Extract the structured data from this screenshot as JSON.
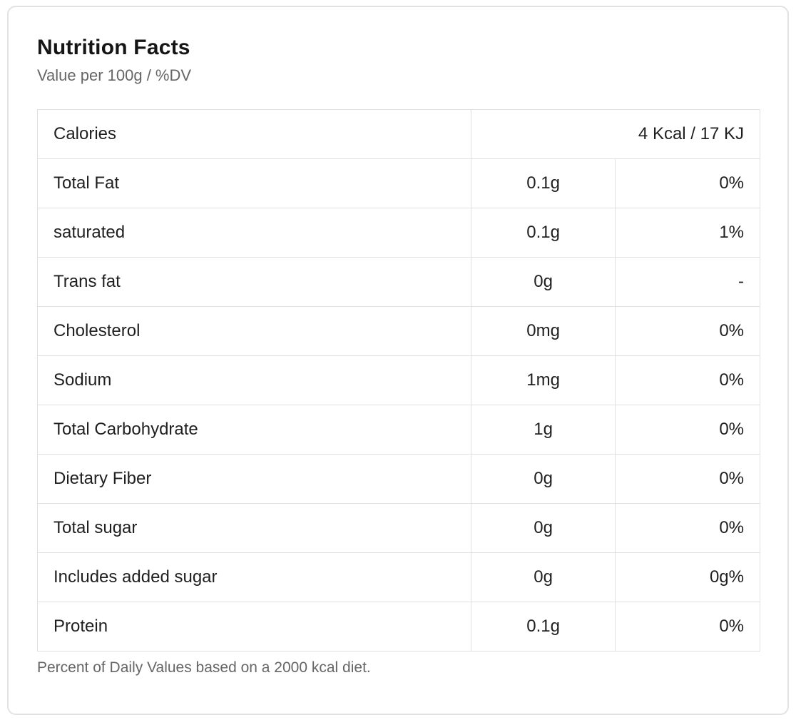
{
  "header": {
    "title": "Nutrition Facts",
    "subtitle": "Value per 100g / %DV"
  },
  "table": {
    "calories": {
      "label": "Calories",
      "value": "4 Kcal / 17 KJ"
    },
    "rows": [
      {
        "label": "Total Fat",
        "amount": "0.1g",
        "dv": "0%"
      },
      {
        "label": "saturated",
        "amount": "0.1g",
        "dv": "1%"
      },
      {
        "label": "Trans fat",
        "amount": "0g",
        "dv": "-"
      },
      {
        "label": "Cholesterol",
        "amount": "0mg",
        "dv": "0%"
      },
      {
        "label": "Sodium",
        "amount": "1mg",
        "dv": "0%"
      },
      {
        "label": "Total Carbohydrate",
        "amount": "1g",
        "dv": "0%"
      },
      {
        "label": "Dietary Fiber",
        "amount": "0g",
        "dv": "0%"
      },
      {
        "label": "Total sugar",
        "amount": "0g",
        "dv": "0%"
      },
      {
        "label": "Includes added sugar",
        "amount": "0g",
        "dv": "0g%"
      },
      {
        "label": "Protein",
        "amount": "0.1g",
        "dv": "0%"
      }
    ]
  },
  "footer": {
    "note": "Percent of Daily Values based on a 2000 kcal diet."
  },
  "colors": {
    "card_border": "#e2e2e2",
    "table_border": "#e0e0e0",
    "text": "#1f1f1f",
    "muted_text": "#666666",
    "background": "#ffffff"
  }
}
